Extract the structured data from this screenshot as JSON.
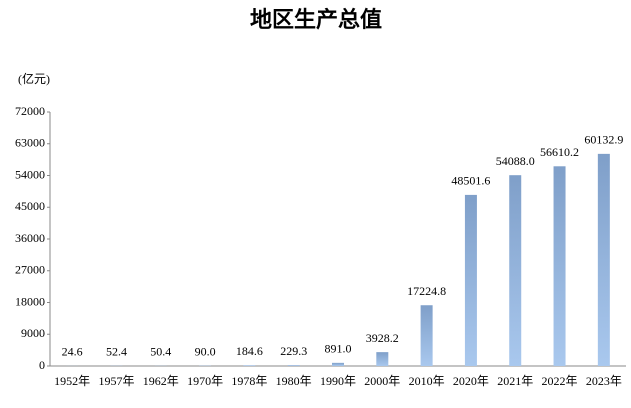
{
  "chart_data": {
    "type": "bar",
    "title": "地区生产总值",
    "y_label": "(亿元)",
    "categories": [
      "1952年",
      "1957年",
      "1962年",
      "1970年",
      "1978年",
      "1980年",
      "1990年",
      "2000年",
      "2010年",
      "2020年",
      "2021年",
      "2022年",
      "2023年"
    ],
    "values": [
      24.6,
      52.4,
      50.4,
      90,
      184.6,
      229.3,
      891,
      3928.2,
      17224.8,
      48501.6,
      54088,
      56610.2,
      60132.9
    ],
    "value_labels": [
      "24.6",
      "52.4",
      "50.4",
      "90.0",
      "184.6",
      "229.3",
      "891.0",
      "3928.2",
      "17224.8",
      "48501.6",
      "54088.0",
      "56610.2",
      "60132.9"
    ],
    "color": "#7f9fc9",
    "ylim": [
      0,
      72000
    ],
    "yticks": [
      0,
      9000,
      18000,
      27000,
      36000,
      45000,
      54000,
      63000,
      72000
    ],
    "grid": false
  }
}
